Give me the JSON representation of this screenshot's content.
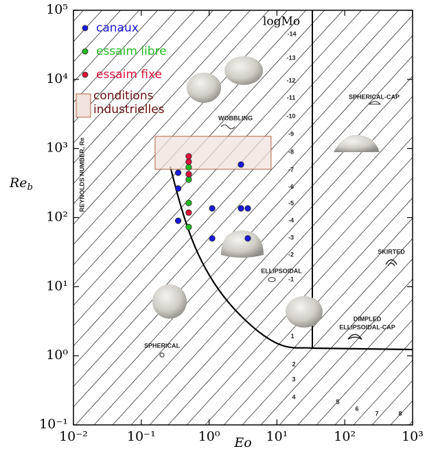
{
  "chart_data": {
    "type": "scatter",
    "log_x": true,
    "log_y": true,
    "x_label": "Eo",
    "y_label": "Re",
    "y_label_sub": "b",
    "xlim": [
      0.01,
      1000
    ],
    "ylim": [
      0.1,
      100000
    ],
    "xticks": [
      {
        "value": 0.01,
        "label": "10⁻²"
      },
      {
        "value": 0.1,
        "label": "10⁻¹"
      },
      {
        "value": 1,
        "label": "10⁰"
      },
      {
        "value": 10,
        "label": "10¹"
      },
      {
        "value": 100,
        "label": "10²"
      },
      {
        "value": 1000,
        "label": "10³"
      }
    ],
    "yticks": [
      {
        "value": 0.1,
        "label": "10⁻¹"
      },
      {
        "value": 1,
        "label": "10⁰"
      },
      {
        "value": 10,
        "label": "10¹"
      },
      {
        "value": 100,
        "label": "10²"
      },
      {
        "value": 1000,
        "label": "10³"
      },
      {
        "value": 10000,
        "label": "10⁴"
      },
      {
        "value": 100000,
        "label": "10⁵"
      }
    ],
    "legend": "upper left",
    "series": [
      {
        "name": "canaux",
        "color": "#1a1adc",
        "x": [
          0.35,
          0.35,
          0.35,
          1.11,
          1.11,
          2.95,
          2.95,
          3.72,
          3.72
        ],
        "values": [
          446,
          264,
          90,
          136,
          50,
          586,
          136,
          136,
          50
        ]
      },
      {
        "name": "essaim libre",
        "color": "#22bb22",
        "x": [
          0.5,
          0.5,
          0.5,
          0.5
        ],
        "values": [
          535,
          355,
          163,
          73
        ]
      },
      {
        "name": "essaim fixe",
        "color": "#e0103a",
        "x": [
          0.5,
          0.5,
          0.5,
          0.5
        ],
        "values": [
          771,
          643,
          426,
          118
        ]
      }
    ],
    "region": {
      "name": "conditions industrielles",
      "color": "#f2e2de",
      "edge": "#b0603f",
      "text_color": "#6b0f0f",
      "xlim": [
        0.16,
        8.2
      ],
      "ylim": [
        500,
        1500
      ]
    },
    "mo_label": "logMo",
    "mo_values": [
      -14,
      -13,
      -12,
      -11,
      -10,
      -9,
      -8,
      -7,
      -6,
      -5,
      -4,
      -3,
      -2,
      -1,
      1,
      2,
      3,
      4,
      5,
      6,
      7,
      8
    ],
    "annotations": [
      "REYNOLDS NUMBER, Re",
      "WOBBLING",
      "SPHERICAL-CAP",
      "SKIRTED",
      "ELLIPSOIDAL",
      "DIMPLED",
      "ELLIPSOIDAL-CAP",
      "SPHERICAL"
    ]
  }
}
